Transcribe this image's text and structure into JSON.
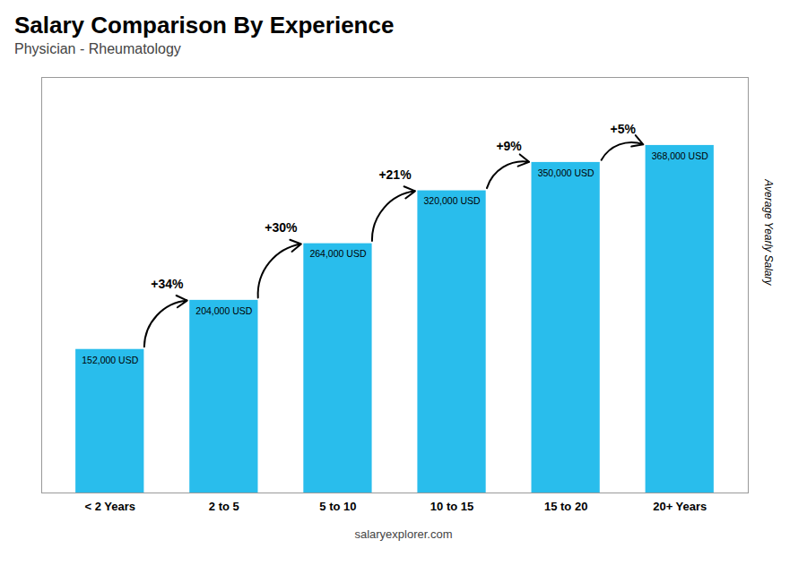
{
  "chart_data": {
    "type": "bar",
    "title": "Salary Comparison By Experience",
    "subtitle": "Physician - Rheumatology",
    "categories": [
      "< 2 Years",
      "2 to 5",
      "5 to 10",
      "10 to 15",
      "15 to 20",
      "20+ Years"
    ],
    "values": [
      152000,
      204000,
      264000,
      320000,
      350000,
      368000
    ],
    "value_labels": [
      "152,000 USD",
      "204,000 USD",
      "264,000 USD",
      "320,000 USD",
      "350,000 USD",
      "368,000 USD"
    ],
    "data_labels": true,
    "color": "#29BDEC",
    "ylabel": "Average Yearly Salary",
    "ylim": [
      0,
      440000
    ],
    "tick_labels": "x",
    "annotations": [
      {
        "text": "+34%",
        "from": "< 2 Years",
        "to": "2 to 5"
      },
      {
        "text": "+30%",
        "from": "2 to 5",
        "to": "5 to 10"
      },
      {
        "text": "+21%",
        "from": "5 to 10",
        "to": "10 to 15"
      },
      {
        "text": "+9%",
        "from": "10 to 15",
        "to": "15 to 20"
      },
      {
        "text": "+5%",
        "from": "15 to 20",
        "to": "20+ Years"
      }
    ],
    "caption": "salaryexplorer.com"
  }
}
